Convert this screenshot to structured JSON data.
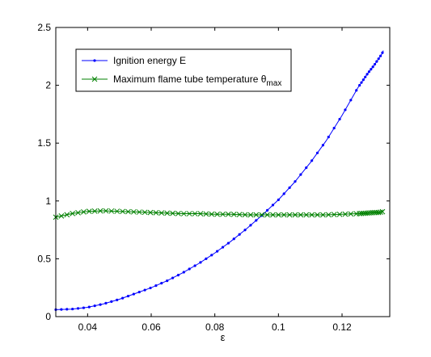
{
  "chart_data": {
    "type": "line",
    "title": "",
    "xlabel": "ε",
    "ylabel": "",
    "xlim": [
      0.03,
      0.135
    ],
    "ylim": [
      0,
      2.5
    ],
    "xticks": [
      0.04,
      0.06,
      0.08,
      0.1,
      0.12
    ],
    "xtick_labels": [
      "0.04",
      "0.06",
      "0.08",
      "0.1",
      "0.12"
    ],
    "yticks": [
      0,
      0.5,
      1,
      1.5,
      2,
      2.5
    ],
    "ytick_labels": [
      "0",
      "0.5",
      "1",
      "1.5",
      "2",
      "2.5"
    ],
    "grid": false,
    "legend_position": "top-left",
    "series": [
      {
        "name": "Ignition energy E",
        "color": "#0000ff",
        "marker": "dot",
        "x": [
          0.03,
          0.035,
          0.04,
          0.045,
          0.05,
          0.055,
          0.06,
          0.065,
          0.07,
          0.075,
          0.08,
          0.085,
          0.09,
          0.095,
          0.1,
          0.105,
          0.11,
          0.115,
          0.12,
          0.125,
          0.128,
          0.13,
          0.1315,
          0.1325,
          0.133
        ],
        "values": [
          0.06,
          0.065,
          0.08,
          0.11,
          0.15,
          0.2,
          0.25,
          0.31,
          0.38,
          0.46,
          0.55,
          0.65,
          0.76,
          0.88,
          1.01,
          1.16,
          1.33,
          1.52,
          1.74,
          1.98,
          2.1,
          2.17,
          2.23,
          2.27,
          2.3
        ]
      },
      {
        "name": "Maximum flame tube temperature θ",
        "name_subscript": "max",
        "color": "#008000",
        "marker": "x",
        "x": [
          0.03,
          0.035,
          0.04,
          0.045,
          0.05,
          0.055,
          0.06,
          0.065,
          0.07,
          0.075,
          0.08,
          0.085,
          0.09,
          0.095,
          0.1,
          0.105,
          0.11,
          0.115,
          0.12,
          0.125,
          0.128,
          0.13,
          0.1315,
          0.1325,
          0.133
        ],
        "values": [
          0.86,
          0.89,
          0.91,
          0.915,
          0.91,
          0.905,
          0.9,
          0.895,
          0.89,
          0.89,
          0.885,
          0.885,
          0.88,
          0.88,
          0.88,
          0.88,
          0.88,
          0.88,
          0.885,
          0.89,
          0.895,
          0.9,
          0.9,
          0.905,
          0.91
        ]
      }
    ]
  }
}
